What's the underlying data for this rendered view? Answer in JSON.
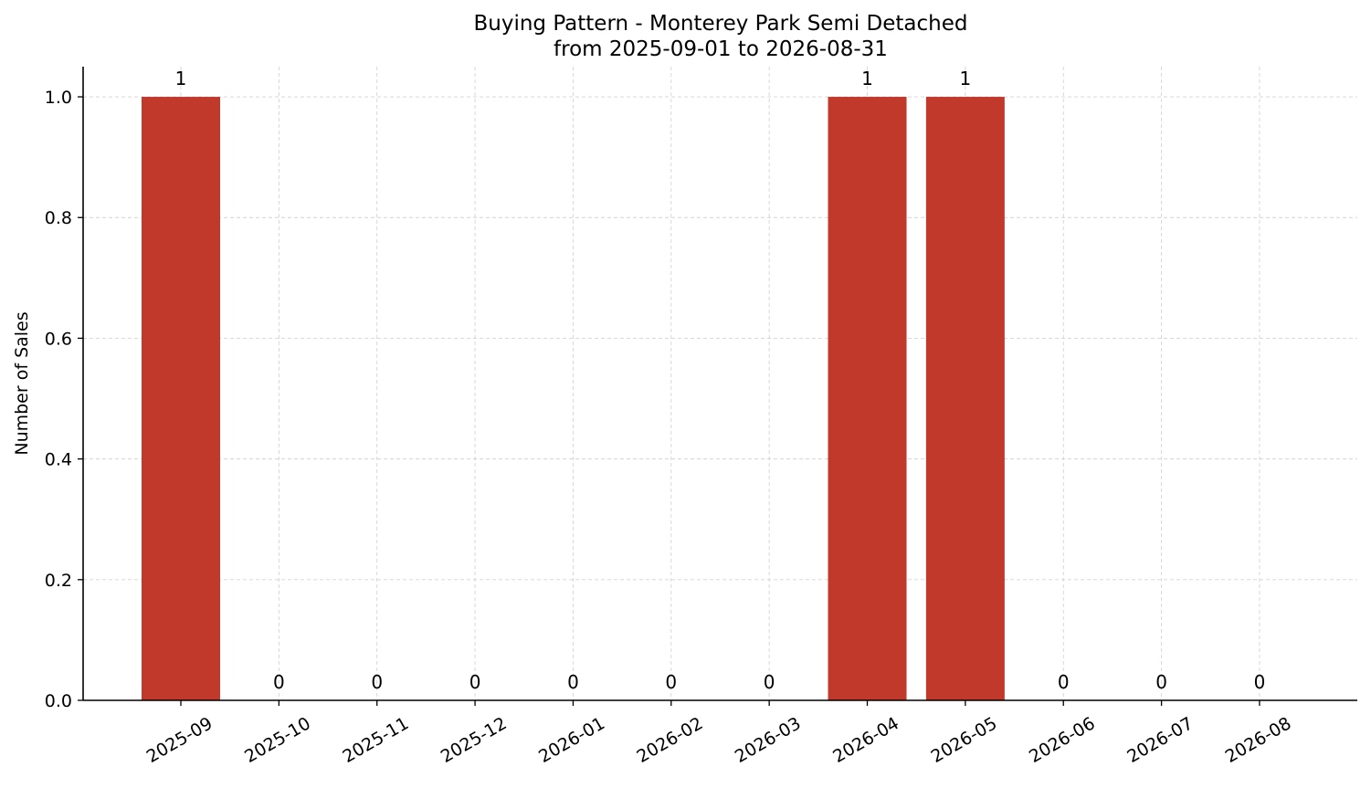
{
  "chart_data": {
    "type": "bar",
    "title_line1": "Buying Pattern - Monterey Park Semi Detached",
    "title_line2": "from 2025-09-01 to 2026-08-31",
    "xlabel": "",
    "ylabel": "Number of Sales",
    "categories": [
      "2025-09",
      "2025-10",
      "2025-11",
      "2025-12",
      "2026-01",
      "2026-02",
      "2026-03",
      "2026-04",
      "2026-05",
      "2026-06",
      "2026-07",
      "2026-08"
    ],
    "values": [
      1,
      0,
      0,
      0,
      0,
      0,
      0,
      1,
      1,
      0,
      0,
      0
    ],
    "data_labels": [
      "1",
      "0",
      "0",
      "0",
      "0",
      "0",
      "0",
      "1",
      "1",
      "0",
      "0",
      "0"
    ],
    "ylim": [
      0,
      1.05
    ],
    "yticks": [
      0.0,
      0.2,
      0.4,
      0.6,
      0.8,
      1.0
    ],
    "ytick_labels": [
      "0.0",
      "0.2",
      "0.4",
      "0.6",
      "0.8",
      "1.0"
    ],
    "grid": true,
    "bar_color": "#c0392b"
  }
}
